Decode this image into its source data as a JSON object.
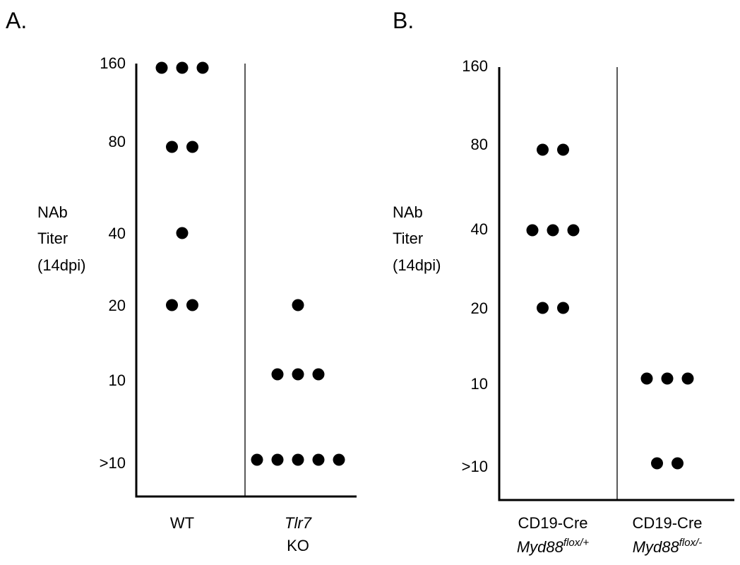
{
  "chart_data": [
    {
      "panel": "A.",
      "type": "scatter",
      "ylabel_lines": [
        "NAb",
        "Titer",
        "(14dpi)"
      ],
      "y_ticks": [
        ">10",
        "10",
        "20",
        "40",
        "80",
        "160"
      ],
      "groups": [
        {
          "label_lines": [
            {
              "text": "WT",
              "italic": false
            }
          ]
        },
        {
          "label_lines": [
            {
              "text": "Tlr7",
              "italic": true
            },
            {
              "text": "KO",
              "italic": false
            }
          ]
        }
      ],
      "points": [
        {
          "group": 0,
          "value": "160",
          "count": 3
        },
        {
          "group": 0,
          "value": "80",
          "count": 2
        },
        {
          "group": 0,
          "value": "40",
          "count": 1
        },
        {
          "group": 0,
          "value": "20",
          "count": 2
        },
        {
          "group": 1,
          "value": "20",
          "count": 1
        },
        {
          "group": 1,
          "value": "10",
          "count": 3
        },
        {
          "group": 1,
          "value": ">10",
          "count": 5
        }
      ]
    },
    {
      "panel": "B.",
      "type": "scatter",
      "ylabel_lines": [
        "NAb",
        "Titer",
        "(14dpi)"
      ],
      "y_ticks": [
        ">10",
        "10",
        "20",
        "40",
        "80",
        "160"
      ],
      "groups": [
        {
          "label_lines": [
            {
              "text": "CD19-Cre",
              "italic": false
            },
            {
              "text": "Myd88",
              "italic": true,
              "sup": "flox/+"
            }
          ]
        },
        {
          "label_lines": [
            {
              "text": "CD19-Cre",
              "italic": false
            },
            {
              "text": "Myd88",
              "italic": true,
              "sup": "flox/-"
            }
          ]
        }
      ],
      "points": [
        {
          "group": 0,
          "value": "80",
          "count": 2
        },
        {
          "group": 0,
          "value": "40",
          "count": 3
        },
        {
          "group": 0,
          "value": "20",
          "count": 2
        },
        {
          "group": 1,
          "value": "10",
          "count": 3
        },
        {
          "group": 1,
          "value": ">10",
          "count": 2
        }
      ]
    }
  ]
}
